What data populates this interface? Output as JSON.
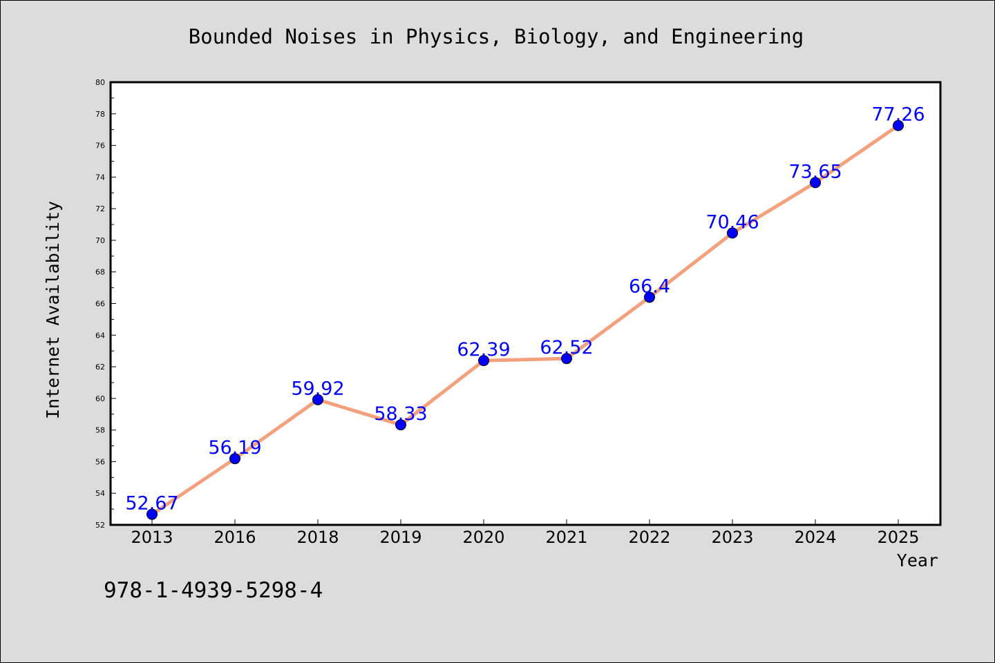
{
  "chart_data": {
    "type": "line",
    "title": "Bounded Noises in Physics, Biology, and Engineering",
    "xlabel": "Year",
    "ylabel": "Internet Availability",
    "categories": [
      "2013",
      "2016",
      "2018",
      "2019",
      "2020",
      "2021",
      "2022",
      "2023",
      "2024",
      "2025"
    ],
    "series": [
      {
        "values": [
          52.67,
          56.19,
          59.92,
          58.33,
          62.39,
          62.52,
          66.4,
          70.46,
          73.65,
          77.26
        ],
        "labels": [
          "52.67",
          "56.19",
          "59.92",
          "58.33",
          "62.39",
          "62.52",
          "66.4",
          "70.46",
          "73.65",
          "77.26"
        ]
      }
    ],
    "ylim": [
      52,
      80
    ],
    "yticks": [
      "52",
      "54",
      "56",
      "58",
      "60",
      "62",
      "64",
      "66",
      "68",
      "70",
      "72",
      "74",
      "76",
      "78",
      "80"
    ],
    "grid": false,
    "line_color": "#f4a07c",
    "marker_color": "#0000ff",
    "label_color": "#0000ff"
  },
  "footer_text": "978-1-4939-5298-4"
}
